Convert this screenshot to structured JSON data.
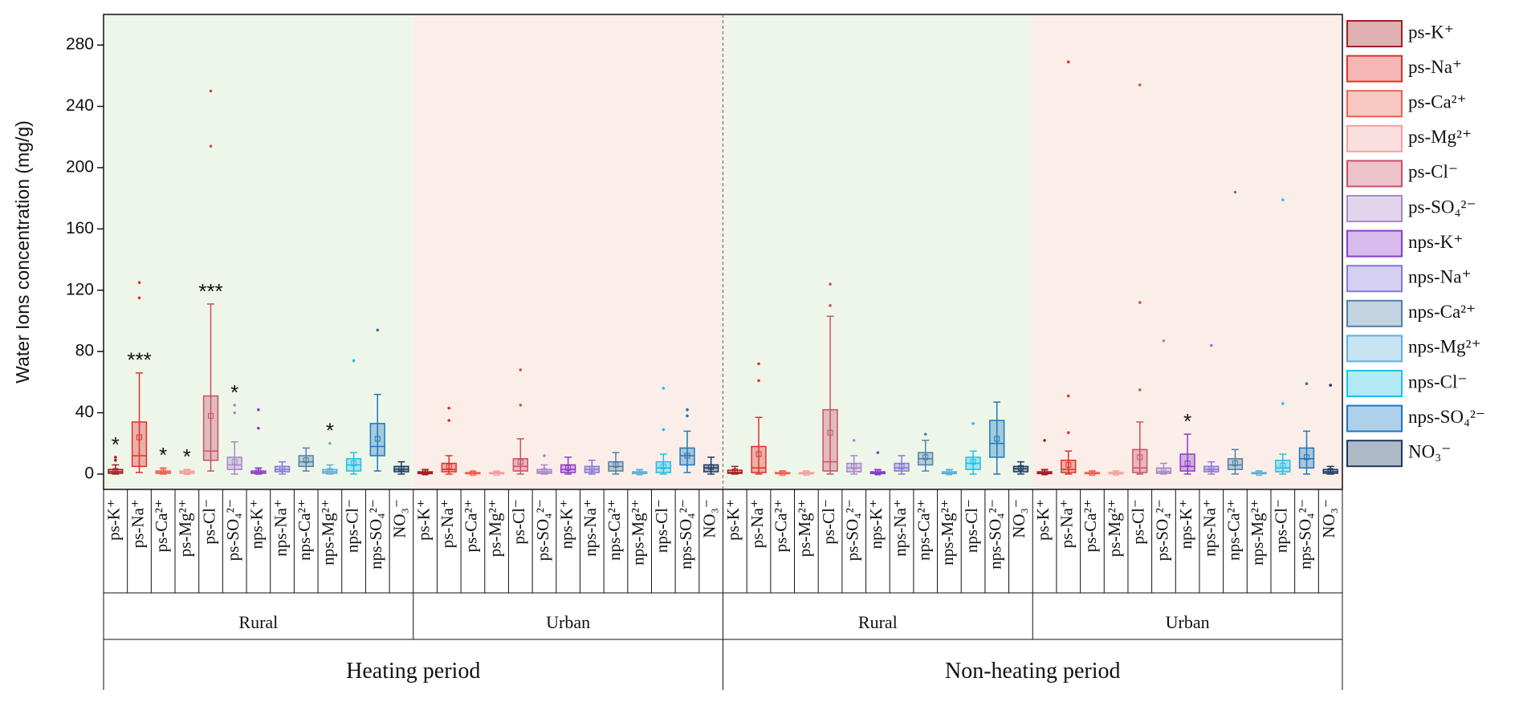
{
  "chart_data": {
    "type": "box",
    "y_label": "Water Ions concentration (mg/g)",
    "ylim": [
      -10,
      300
    ],
    "yticks": [
      0,
      40,
      80,
      120,
      160,
      200,
      240,
      280
    ],
    "periods": [
      {
        "name": "Heating period",
        "areas": [
          "Rural",
          "Urban"
        ]
      },
      {
        "name": "Non-heating period",
        "areas": [
          "Rural",
          "Urban"
        ]
      }
    ],
    "series": [
      {
        "name": "ps-K⁺",
        "color": "#a51d23",
        "low": [
          0,
          0,
          0,
          0
        ],
        "q1": [
          0.5,
          0.3,
          0.5,
          0.3
        ],
        "median": [
          1.5,
          0.8,
          1,
          0.8
        ],
        "q3": [
          3,
          1.5,
          2.5,
          1.5
        ],
        "high": [
          6,
          3,
          5,
          3
        ],
        "mean": [
          2,
          1,
          1.8,
          1
        ],
        "outliers": [
          [
            9,
            11
          ],
          [],
          [],
          [
            22
          ]
        ],
        "significance": [
          "*",
          null,
          null,
          null
        ]
      },
      {
        "name": "ps-Na⁺",
        "color": "#e0302c",
        "low": [
          1,
          0,
          0,
          0
        ],
        "q1": [
          5,
          1.5,
          1,
          1
        ],
        "median": [
          12,
          3,
          4,
          3
        ],
        "q3": [
          34,
          7,
          18,
          9
        ],
        "high": [
          66,
          12,
          37,
          15
        ],
        "mean": [
          24,
          5,
          13,
          6
        ],
        "outliers": [
          [
            115,
            125
          ],
          [
            35,
            43
          ],
          [
            61,
            72
          ],
          [
            27,
            51,
            269
          ]
        ],
        "significance": [
          "***",
          null,
          null,
          null
        ]
      },
      {
        "name": "ps-Ca²⁺",
        "color": "#f06050",
        "low": [
          0,
          0,
          0,
          0
        ],
        "q1": [
          0.5,
          0.2,
          0.2,
          0.2
        ],
        "median": [
          1,
          0.5,
          0.5,
          0.5
        ],
        "q3": [
          2,
          1,
          1,
          1
        ],
        "high": [
          4,
          1.5,
          2,
          2
        ],
        "mean": [
          1.5,
          0.6,
          0.6,
          0.6
        ],
        "outliers": [
          [],
          [],
          [],
          []
        ],
        "significance": [
          "*",
          null,
          null,
          null
        ]
      },
      {
        "name": "ps-Mg²⁺",
        "color": "#f4a0a0",
        "low": [
          0,
          0,
          0,
          0
        ],
        "q1": [
          0.5,
          0.2,
          0.2,
          0.2
        ],
        "median": [
          1,
          0.5,
          0.5,
          0.5
        ],
        "q3": [
          2,
          1,
          1,
          1
        ],
        "high": [
          3,
          1.5,
          2,
          2
        ],
        "mean": [
          1.3,
          0.6,
          0.6,
          0.6
        ],
        "outliers": [
          [],
          [],
          [],
          []
        ],
        "significance": [
          "*",
          null,
          null,
          null
        ]
      },
      {
        "name": "ps-Cl⁻",
        "color": "#c9506a",
        "low": [
          2,
          0,
          0,
          0
        ],
        "q1": [
          9,
          2,
          2,
          1
        ],
        "median": [
          15,
          5,
          8,
          4
        ],
        "q3": [
          51,
          10,
          42,
          16
        ],
        "high": [
          111,
          23,
          103,
          34
        ],
        "mean": [
          38,
          8,
          27,
          11
        ],
        "outliers": [
          [
            214,
            250
          ],
          [
            45,
            68
          ],
          [
            110,
            124
          ],
          [
            55,
            112,
            254
          ]
        ],
        "significance": [
          "***",
          null,
          null,
          null
        ]
      },
      {
        "name": "ps-SO₄²⁻",
        "color": "#a888c8",
        "low": [
          0,
          0,
          0,
          0
        ],
        "q1": [
          3,
          0.5,
          1.5,
          0.5
        ],
        "median": [
          6,
          1.5,
          4,
          1.5
        ],
        "q3": [
          11,
          3,
          7,
          4
        ],
        "high": [
          21,
          6,
          12,
          7
        ],
        "mean": [
          8,
          2,
          5,
          2.5
        ],
        "outliers": [
          [
            40,
            45
          ],
          [
            12
          ],
          [
            22
          ],
          [
            87
          ]
        ],
        "significance": [
          "*",
          null,
          null,
          null
        ]
      },
      {
        "name": "nps-K⁺",
        "color": "#8a3cc8",
        "low": [
          0,
          0,
          0,
          0
        ],
        "q1": [
          0.5,
          1,
          0.3,
          2
        ],
        "median": [
          1,
          3,
          0.8,
          5
        ],
        "q3": [
          2,
          6,
          1.5,
          13
        ],
        "high": [
          4,
          11,
          3,
          26
        ],
        "mean": [
          1.5,
          4,
          1,
          7
        ],
        "outliers": [
          [
            30,
            42
          ],
          [],
          [
            14
          ],
          []
        ],
        "significance": [
          null,
          null,
          null,
          "*"
        ]
      },
      {
        "name": "nps-Na⁺",
        "color": "#8878d8",
        "low": [
          0,
          0,
          0,
          0
        ],
        "q1": [
          1.5,
          1,
          2,
          1.5
        ],
        "median": [
          3,
          3,
          4,
          3
        ],
        "q3": [
          5,
          5,
          7,
          5
        ],
        "high": [
          8,
          9,
          12,
          8
        ],
        "mean": [
          3.5,
          3.5,
          5,
          3.5
        ],
        "outliers": [
          [],
          [],
          [],
          [
            84
          ]
        ],
        "significance": [
          null,
          null,
          null,
          null
        ]
      },
      {
        "name": "nps-Ca²⁺",
        "color": "#5080a8",
        "low": [
          2,
          0,
          2,
          0
        ],
        "q1": [
          5,
          2,
          6,
          3
        ],
        "median": [
          8,
          5,
          10,
          6
        ],
        "q3": [
          12,
          8,
          14,
          10
        ],
        "high": [
          17,
          14,
          22,
          16
        ],
        "mean": [
          9,
          6,
          11,
          7
        ],
        "outliers": [
          [],
          [],
          [
            26
          ],
          [
            184
          ]
        ],
        "significance": [
          null,
          null,
          null,
          null
        ]
      },
      {
        "name": "nps-Mg²⁺",
        "color": "#60b0d8",
        "low": [
          0,
          0,
          0,
          0
        ],
        "q1": [
          0.5,
          0.3,
          0.3,
          0.2
        ],
        "median": [
          1.5,
          0.8,
          0.8,
          0.5
        ],
        "q3": [
          3,
          1.5,
          1.5,
          1
        ],
        "high": [
          6,
          3,
          3,
          2
        ],
        "mean": [
          2,
          1,
          1,
          0.6
        ],
        "outliers": [
          [
            20
          ],
          [],
          [],
          []
        ],
        "significance": [
          "*",
          null,
          null,
          null
        ]
      },
      {
        "name": "nps-Cl⁻",
        "color": "#20c0e8",
        "low": [
          0,
          0,
          0,
          0
        ],
        "q1": [
          2,
          1,
          3,
          1.5
        ],
        "median": [
          6,
          4,
          7,
          4
        ],
        "q3": [
          10,
          8,
          11,
          9
        ],
        "high": [
          14,
          13,
          15,
          13
        ],
        "mean": [
          7,
          5,
          8,
          5.5
        ],
        "outliers": [
          [
            74
          ],
          [
            29,
            56
          ],
          [
            33
          ],
          [
            46,
            179
          ]
        ],
        "significance": [
          null,
          null,
          null,
          null
        ]
      },
      {
        "name": "nps-SO₄²⁻",
        "color": "#1a78c0",
        "low": [
          2,
          1,
          0,
          0
        ],
        "q1": [
          12,
          6,
          11,
          4
        ],
        "median": [
          18,
          12,
          20,
          10
        ],
        "q3": [
          33,
          17,
          35,
          17
        ],
        "high": [
          52,
          28,
          47,
          28
        ],
        "mean": [
          23,
          12,
          23,
          11
        ],
        "outliers": [
          [
            94
          ],
          [
            38,
            42
          ],
          [],
          [
            59
          ]
        ],
        "significance": [
          null,
          null,
          null,
          null
        ]
      },
      {
        "name": "NO₃⁻",
        "color": "#1a3a60",
        "low": [
          0,
          0,
          0,
          0
        ],
        "q1": [
          1.5,
          1.5,
          1.5,
          0.5
        ],
        "median": [
          3,
          4,
          3.5,
          1.5
        ],
        "q3": [
          5,
          6,
          5,
          3
        ],
        "high": [
          8,
          11,
          8,
          5
        ],
        "mean": [
          3.5,
          4.5,
          4,
          2
        ],
        "outliers": [
          [],
          [],
          [],
          [
            58
          ]
        ],
        "significance": [
          null,
          null,
          null,
          null
        ]
      }
    ]
  }
}
